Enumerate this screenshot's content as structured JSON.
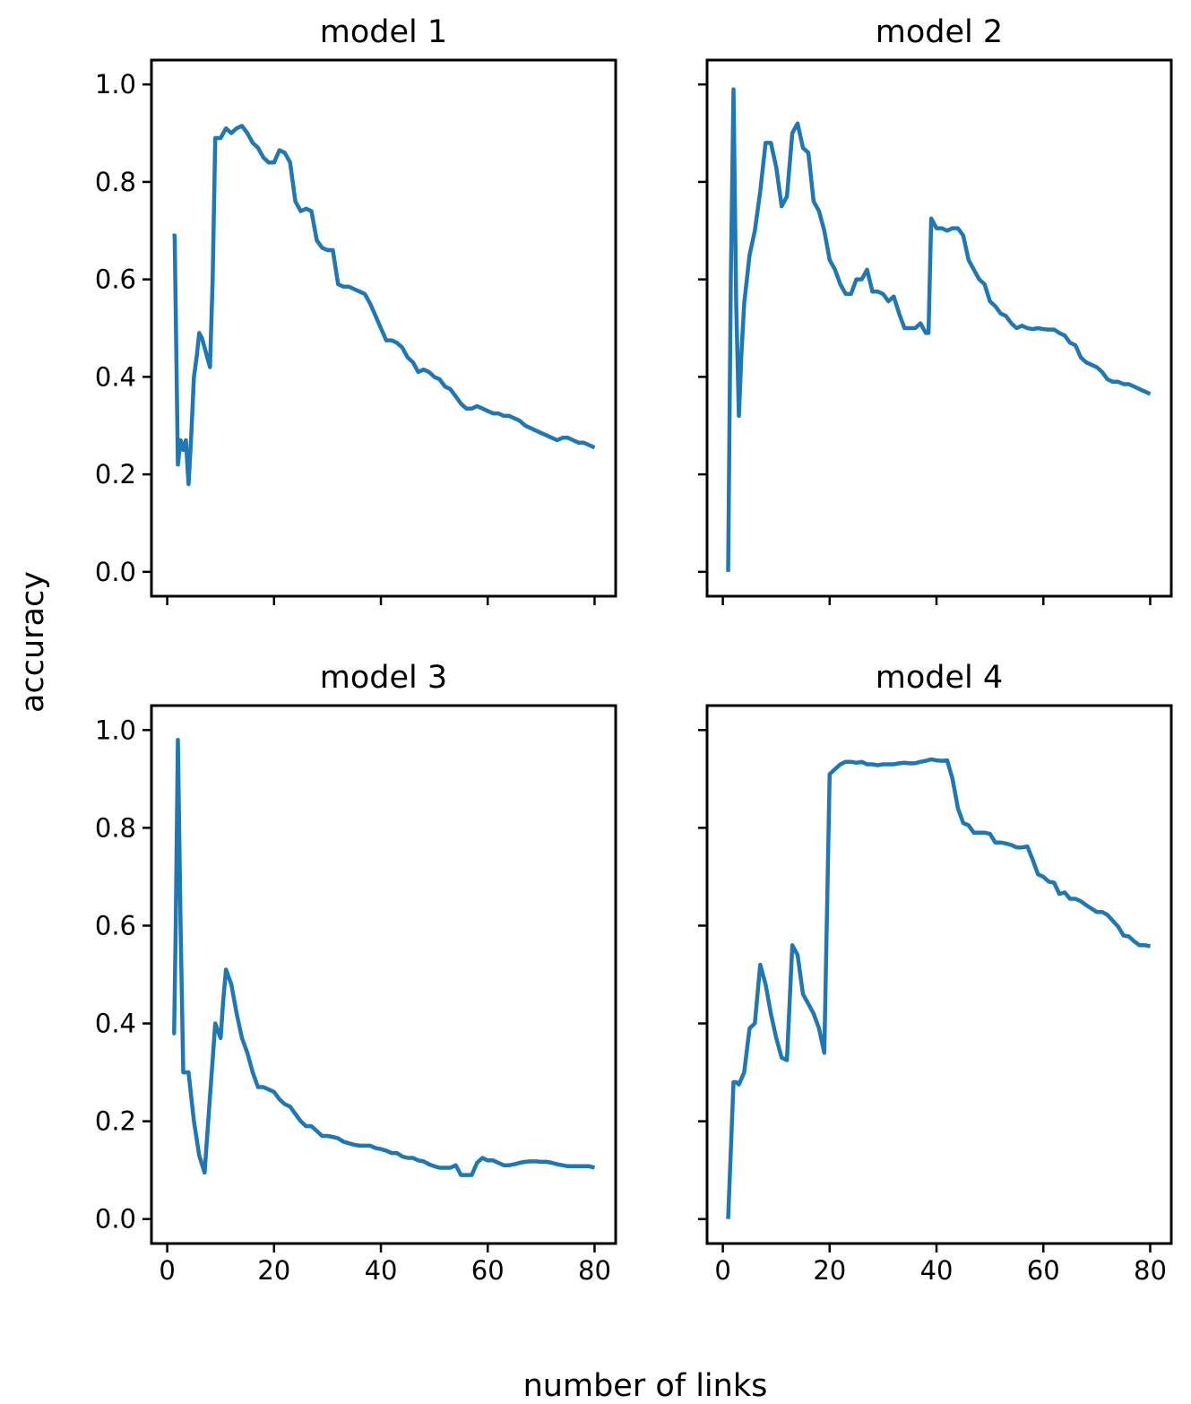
{
  "figure": {
    "xlabel": "number of links",
    "ylabel": "accuracy",
    "line_color": "#1f77b4"
  },
  "chart_data": [
    {
      "type": "line",
      "title": "model 1",
      "xlabel": "",
      "ylabel": "accuracy",
      "xlim": [
        -2.95,
        83.95
      ],
      "ylim": [
        -0.05,
        1.05
      ],
      "xticks": [
        0,
        20,
        40,
        60,
        80
      ],
      "yticks": [
        0.0,
        0.2,
        0.4,
        0.6,
        0.8,
        1.0
      ],
      "xtick_labels": [
        "0",
        "20",
        "40",
        "60",
        "80"
      ],
      "ytick_labels": [
        "0.0",
        "0.2",
        "0.4",
        "0.6",
        "0.8",
        "1.0"
      ],
      "show_xtick_labels": false,
      "show_ytick_labels": true,
      "grid": false,
      "series": [
        {
          "name": "model 1",
          "x": [
            1,
            1.4,
            2,
            2.5,
            3,
            3.5,
            4,
            4.5,
            5,
            5.5,
            6,
            6.5,
            7,
            7.5,
            8,
            8.5,
            9,
            10,
            11,
            12,
            13,
            14,
            15,
            16,
            17,
            18,
            19,
            20,
            21,
            22,
            23,
            24,
            25,
            26,
            27,
            28,
            29,
            30,
            31,
            32,
            33,
            34,
            35,
            36,
            37,
            38,
            39,
            40,
            41,
            42,
            43,
            44,
            45,
            46,
            47,
            48,
            49,
            50,
            51,
            52,
            53,
            54,
            55,
            56,
            57,
            58,
            59,
            60,
            61,
            62,
            63,
            64,
            65,
            66,
            67,
            68,
            69,
            70,
            71,
            72,
            73,
            74,
            75,
            76,
            77,
            78,
            79,
            80
          ],
          "y": [
            0.69,
            0.69,
            0.22,
            0.27,
            0.25,
            0.27,
            0.18,
            0.28,
            0.4,
            0.44,
            0.49,
            0.48,
            0.46,
            0.44,
            0.42,
            0.6,
            0.89,
            0.89,
            0.91,
            0.9,
            0.91,
            0.915,
            0.9,
            0.88,
            0.87,
            0.85,
            0.84,
            0.84,
            0.865,
            0.86,
            0.84,
            0.76,
            0.74,
            0.745,
            0.74,
            0.68,
            0.665,
            0.66,
            0.66,
            0.59,
            0.585,
            0.585,
            0.58,
            0.575,
            0.57,
            0.55,
            0.525,
            0.5,
            0.475,
            0.475,
            0.47,
            0.46,
            0.44,
            0.43,
            0.41,
            0.415,
            0.41,
            0.4,
            0.395,
            0.38,
            0.375,
            0.36,
            0.345,
            0.335,
            0.335,
            0.34,
            0.335,
            0.33,
            0.325,
            0.325,
            0.32,
            0.32,
            0.315,
            0.31,
            0.3,
            0.295,
            0.29,
            0.285,
            0.28,
            0.275,
            0.27,
            0.275,
            0.275,
            0.27,
            0.265,
            0.265,
            0.26,
            0.255
          ]
        }
      ]
    },
    {
      "type": "line",
      "title": "model 2",
      "xlabel": "",
      "ylabel": "",
      "xlim": [
        -2.95,
        83.95
      ],
      "ylim": [
        -0.05,
        1.05
      ],
      "xticks": [
        0,
        20,
        40,
        60,
        80
      ],
      "yticks": [
        0.0,
        0.2,
        0.4,
        0.6,
        0.8,
        1.0
      ],
      "xtick_labels": [
        "0",
        "20",
        "40",
        "60",
        "80"
      ],
      "ytick_labels": [
        "0.0",
        "0.2",
        "0.4",
        "0.6",
        "0.8",
        "1.0"
      ],
      "show_xtick_labels": false,
      "show_ytick_labels": false,
      "grid": false,
      "series": [
        {
          "name": "model 2",
          "x": [
            1,
            1.5,
            2,
            2.5,
            3,
            3.5,
            4,
            4.5,
            5,
            6,
            7,
            8,
            9,
            10,
            11,
            12,
            13,
            14,
            15,
            16,
            17,
            18,
            19,
            20,
            21,
            22,
            23,
            24,
            25,
            26,
            27,
            28,
            29,
            30,
            31,
            32,
            33,
            34,
            35,
            36,
            37,
            38,
            38.5,
            39,
            40,
            41,
            42,
            43,
            44,
            45,
            46,
            47,
            48,
            49,
            50,
            51,
            52,
            53,
            54,
            55,
            56,
            57,
            58,
            59,
            60,
            61,
            62,
            63,
            64,
            65,
            66,
            67,
            68,
            69,
            70,
            71,
            72,
            73,
            74,
            75,
            76,
            77,
            78,
            79,
            80
          ],
          "y": [
            0.0,
            0.6,
            0.99,
            0.55,
            0.32,
            0.45,
            0.55,
            0.6,
            0.65,
            0.7,
            0.78,
            0.88,
            0.88,
            0.83,
            0.75,
            0.77,
            0.9,
            0.92,
            0.87,
            0.86,
            0.76,
            0.74,
            0.7,
            0.64,
            0.62,
            0.59,
            0.57,
            0.57,
            0.6,
            0.6,
            0.62,
            0.575,
            0.575,
            0.57,
            0.555,
            0.565,
            0.53,
            0.5,
            0.5,
            0.5,
            0.51,
            0.49,
            0.49,
            0.725,
            0.705,
            0.705,
            0.7,
            0.705,
            0.705,
            0.69,
            0.64,
            0.62,
            0.6,
            0.59,
            0.555,
            0.545,
            0.53,
            0.525,
            0.51,
            0.5,
            0.505,
            0.5,
            0.498,
            0.5,
            0.498,
            0.497,
            0.497,
            0.49,
            0.485,
            0.47,
            0.465,
            0.44,
            0.43,
            0.425,
            0.42,
            0.41,
            0.395,
            0.39,
            0.39,
            0.385,
            0.385,
            0.38,
            0.375,
            0.37,
            0.365
          ]
        }
      ]
    },
    {
      "type": "line",
      "title": "model 3",
      "xlabel": "",
      "ylabel": "accuracy",
      "xlim": [
        -2.95,
        83.95
      ],
      "ylim": [
        -0.05,
        1.05
      ],
      "xticks": [
        0,
        20,
        40,
        60,
        80
      ],
      "yticks": [
        0.0,
        0.2,
        0.4,
        0.6,
        0.8,
        1.0
      ],
      "xtick_labels": [
        "0",
        "20",
        "40",
        "60",
        "80"
      ],
      "ytick_labels": [
        "0.0",
        "0.2",
        "0.4",
        "0.6",
        "0.8",
        "1.0"
      ],
      "show_xtick_labels": true,
      "show_ytick_labels": true,
      "grid": false,
      "series": [
        {
          "name": "model 3",
          "x": [
            1,
            1.3,
            1.6,
            2,
            2.5,
            3,
            4,
            5,
            6,
            7,
            8,
            9,
            10,
            10.5,
            11,
            12,
            13,
            14,
            15,
            16,
            17,
            18,
            19,
            20,
            21,
            22,
            23,
            24,
            25,
            26,
            27,
            28,
            29,
            30,
            31,
            32,
            33,
            34,
            35,
            36,
            37,
            38,
            39,
            40,
            41,
            42,
            43,
            44,
            45,
            46,
            47,
            48,
            49,
            50,
            51,
            52,
            53,
            54,
            55,
            56,
            57,
            58,
            59,
            60,
            61,
            62,
            63,
            64,
            65,
            66,
            67,
            68,
            69,
            70,
            71,
            72,
            73,
            74,
            75,
            76,
            77,
            78,
            79,
            80
          ],
          "y": [
            0.38,
            0.38,
            0.6,
            0.98,
            0.6,
            0.3,
            0.3,
            0.2,
            0.13,
            0.095,
            0.25,
            0.4,
            0.37,
            0.45,
            0.51,
            0.48,
            0.42,
            0.37,
            0.34,
            0.3,
            0.27,
            0.27,
            0.265,
            0.26,
            0.245,
            0.235,
            0.23,
            0.215,
            0.2,
            0.19,
            0.19,
            0.18,
            0.17,
            0.17,
            0.168,
            0.165,
            0.158,
            0.155,
            0.152,
            0.15,
            0.15,
            0.15,
            0.145,
            0.143,
            0.14,
            0.135,
            0.135,
            0.128,
            0.125,
            0.125,
            0.12,
            0.118,
            0.112,
            0.108,
            0.105,
            0.105,
            0.105,
            0.11,
            0.09,
            0.09,
            0.09,
            0.115,
            0.125,
            0.12,
            0.12,
            0.115,
            0.11,
            0.11,
            0.112,
            0.115,
            0.117,
            0.118,
            0.118,
            0.117,
            0.117,
            0.115,
            0.112,
            0.11,
            0.108,
            0.108,
            0.108,
            0.108,
            0.108,
            0.105
          ]
        }
      ]
    },
    {
      "type": "line",
      "title": "model 4",
      "xlabel": "",
      "ylabel": "",
      "xlim": [
        -2.95,
        83.95
      ],
      "ylim": [
        -0.05,
        1.05
      ],
      "xticks": [
        0,
        20,
        40,
        60,
        80
      ],
      "yticks": [
        0.0,
        0.2,
        0.4,
        0.6,
        0.8,
        1.0
      ],
      "xtick_labels": [
        "0",
        "20",
        "40",
        "60",
        "80"
      ],
      "ytick_labels": [
        "0.0",
        "0.2",
        "0.4",
        "0.6",
        "0.8",
        "1.0"
      ],
      "show_xtick_labels": true,
      "show_ytick_labels": false,
      "grid": false,
      "series": [
        {
          "name": "model 4",
          "x": [
            1,
            1.5,
            2,
            2.5,
            3,
            4,
            5,
            6,
            7,
            8,
            9,
            10,
            11,
            12,
            13,
            14,
            15,
            16,
            17,
            18,
            19,
            20,
            21,
            22,
            23,
            24,
            25,
            26,
            27,
            28,
            29,
            30,
            31,
            32,
            33,
            34,
            35,
            36,
            37,
            38,
            39,
            40,
            41,
            42,
            43,
            44,
            45,
            46,
            47,
            48,
            49,
            50,
            51,
            52,
            53,
            54,
            55,
            56,
            57,
            58,
            59,
            60,
            61,
            62,
            63,
            64,
            65,
            66,
            67,
            68,
            69,
            70,
            71,
            72,
            73,
            74,
            75,
            76,
            77,
            78,
            79,
            80
          ],
          "y": [
            0.0,
            0.14,
            0.28,
            0.28,
            0.275,
            0.3,
            0.39,
            0.4,
            0.52,
            0.48,
            0.42,
            0.37,
            0.33,
            0.325,
            0.56,
            0.54,
            0.46,
            0.44,
            0.42,
            0.39,
            0.34,
            0.91,
            0.92,
            0.93,
            0.935,
            0.935,
            0.933,
            0.935,
            0.93,
            0.93,
            0.928,
            0.93,
            0.93,
            0.93,
            0.932,
            0.933,
            0.932,
            0.932,
            0.935,
            0.937,
            0.94,
            0.938,
            0.937,
            0.938,
            0.9,
            0.84,
            0.81,
            0.805,
            0.79,
            0.79,
            0.79,
            0.788,
            0.77,
            0.77,
            0.768,
            0.765,
            0.76,
            0.76,
            0.762,
            0.735,
            0.705,
            0.7,
            0.69,
            0.688,
            0.665,
            0.668,
            0.655,
            0.655,
            0.65,
            0.642,
            0.635,
            0.628,
            0.628,
            0.622,
            0.61,
            0.598,
            0.58,
            0.578,
            0.568,
            0.56,
            0.56,
            0.558
          ]
        }
      ]
    }
  ]
}
